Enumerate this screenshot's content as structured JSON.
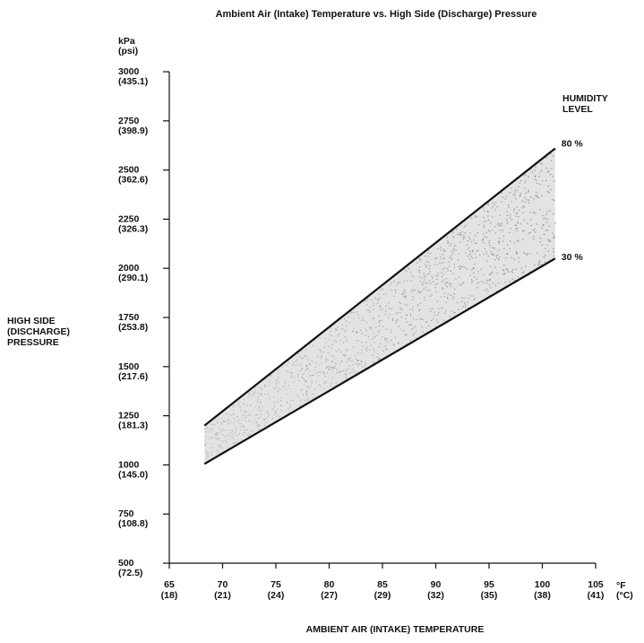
{
  "chart_data": {
    "type": "area",
    "title": "Ambient Air (Intake) Temperature vs. High Side (Discharge) Pressure",
    "xlabel": "AMBIENT AIR (INTAKE) TEMPERATURE",
    "ylabel": [
      "HIGH SIDE",
      "(DISCHARGE)",
      "PRESSURE"
    ],
    "y_units": [
      "kPa",
      "(psi)"
    ],
    "x_units": [
      "°F",
      "(°C)"
    ],
    "xlim": [
      65,
      105
    ],
    "ylim": [
      500,
      3000
    ],
    "x_ticks": [
      {
        "value": 65,
        "f": "65",
        "c": "(18)"
      },
      {
        "value": 70,
        "f": "70",
        "c": "(21)"
      },
      {
        "value": 75,
        "f": "75",
        "c": "(24)"
      },
      {
        "value": 80,
        "f": "80",
        "c": "(27)"
      },
      {
        "value": 85,
        "f": "85",
        "c": "(29)"
      },
      {
        "value": 90,
        "f": "90",
        "c": "(32)"
      },
      {
        "value": 95,
        "f": "95",
        "c": "(35)"
      },
      {
        "value": 100,
        "f": "100",
        "c": "(38)"
      },
      {
        "value": 105,
        "f": "105",
        "c": "(41)"
      }
    ],
    "y_ticks": [
      {
        "value": 500,
        "kpa": "500",
        "psi": "(72.5)"
      },
      {
        "value": 750,
        "kpa": "750",
        "psi": "(108.8)"
      },
      {
        "value": 1000,
        "kpa": "1000",
        "psi": "(145.0)"
      },
      {
        "value": 1250,
        "kpa": "1250",
        "psi": "(181.3)"
      },
      {
        "value": 1500,
        "kpa": "1500",
        "psi": "(217.6)"
      },
      {
        "value": 1750,
        "kpa": "1750",
        "psi": "(253.8)"
      },
      {
        "value": 2000,
        "kpa": "2000",
        "psi": "(290.1)"
      },
      {
        "value": 2250,
        "kpa": "2250",
        "psi": "(326.3)"
      },
      {
        "value": 2500,
        "kpa": "2500",
        "psi": "(362.6)"
      },
      {
        "value": 2750,
        "kpa": "2750",
        "psi": "(398.9)"
      },
      {
        "value": 3000,
        "kpa": "3000",
        "psi": "(435.1)"
      }
    ],
    "series": [
      {
        "name": "80 %",
        "x": [
          68.3,
          101.2
        ],
        "y": [
          1200,
          2610
        ]
      },
      {
        "name": "30 %",
        "x": [
          68.3,
          101.2
        ],
        "y": [
          1005,
          2050
        ]
      }
    ],
    "legend_title": [
      "HUMIDITY",
      "LEVEL"
    ],
    "shaded_region": "between 30 % and 80 % humidity lines",
    "colors": {
      "line": "#111111",
      "shade": "#9a9a9a"
    }
  }
}
